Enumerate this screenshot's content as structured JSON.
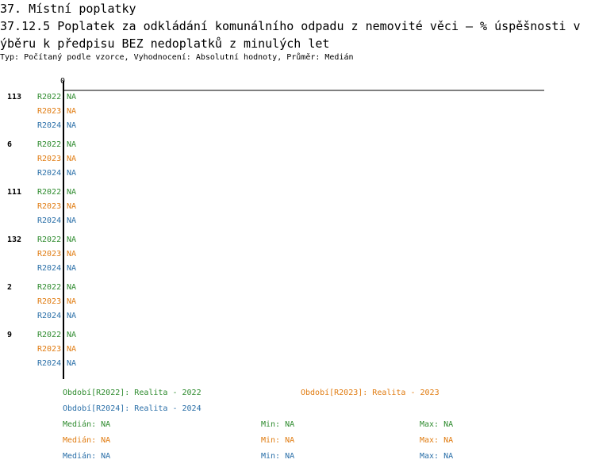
{
  "header": {
    "section": "37. Místní poplatky",
    "title_line1": "37.12.5 Poplatek za odkládání komunálního odpadu z nemovité věci – % úspěšnosti v",
    "title_line2": "ýběru k předpisu BEZ nedoplatků z minulých let",
    "subtitle": "Typ: Počítaný podle vzorce, Vyhodnocení: Absolutní hodnoty, Průměr: Medián"
  },
  "colors": {
    "R2022": "#2e8b2e",
    "R2023": "#e07b10",
    "R2024": "#2a6fa8"
  },
  "chart_data": {
    "type": "bar",
    "orientation": "horizontal",
    "xlim_label": "0",
    "categories": [
      "113",
      "6",
      "111",
      "132",
      "2",
      "9"
    ],
    "series": [
      {
        "name": "R2022",
        "values": [
          "NA",
          "NA",
          "NA",
          "NA",
          "NA",
          "NA"
        ]
      },
      {
        "name": "R2023",
        "values": [
          "NA",
          "NA",
          "NA",
          "NA",
          "NA",
          "NA"
        ]
      },
      {
        "name": "R2024",
        "values": [
          "NA",
          "NA",
          "NA",
          "NA",
          "NA",
          "NA"
        ]
      }
    ],
    "legend": [
      {
        "series": "R2022",
        "label": "Období[R2022]: Realita - 2022"
      },
      {
        "series": "R2023",
        "label": "Období[R2023]: Realita - 2023"
      },
      {
        "series": "R2024",
        "label": "Období[R2024]: Realita - 2024"
      }
    ],
    "stats": [
      {
        "series": "R2022",
        "median_label": "Medián:",
        "median": "NA",
        "min_label": "Min:",
        "min": "NA",
        "max_label": "Max:",
        "max": "NA"
      },
      {
        "series": "R2023",
        "median_label": "Medián:",
        "median": "NA",
        "min_label": "Min:",
        "min": "NA",
        "max_label": "Max:",
        "max": "NA"
      },
      {
        "series": "R2024",
        "median_label": "Medián:",
        "median": "NA",
        "min_label": "Min:",
        "min": "NA",
        "max_label": "Max:",
        "max": "NA"
      }
    ]
  }
}
